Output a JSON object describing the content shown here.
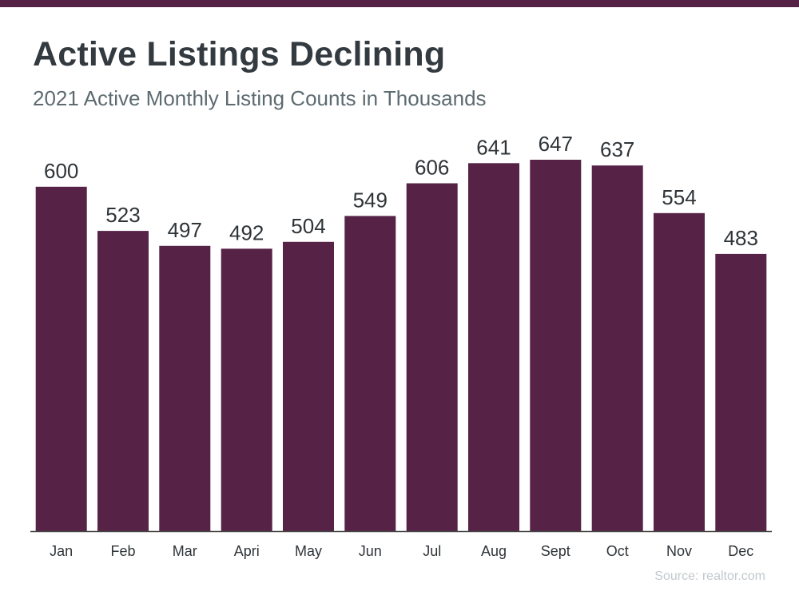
{
  "colors": {
    "accent": "#562346",
    "axis": "#444444"
  },
  "header": {
    "title": "Active Listings Declining",
    "subtitle": "2021 Active Monthly Listing Counts in Thousands"
  },
  "footer": {
    "source": "Source: realtor.com"
  },
  "chart_data": {
    "type": "bar",
    "title": "Active Listings Declining",
    "subtitle": "2021 Active Monthly Listing Counts in Thousands",
    "categories": [
      "Jan",
      "Feb",
      "Mar",
      "Apri",
      "May",
      "Jun",
      "Jul",
      "Aug",
      "Sept",
      "Oct",
      "Nov",
      "Dec"
    ],
    "values": [
      600,
      523,
      497,
      492,
      504,
      549,
      606,
      641,
      647,
      637,
      554,
      483
    ],
    "ylim": [
      0,
      660
    ],
    "grid": false,
    "legend": "none"
  }
}
